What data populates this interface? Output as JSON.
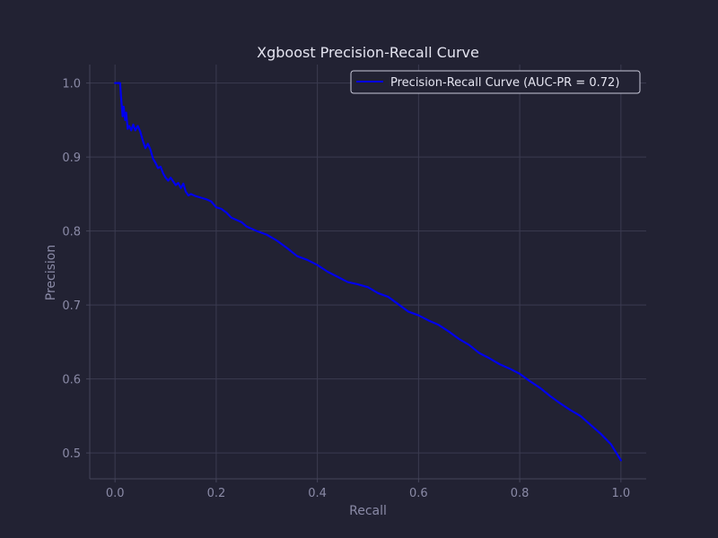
{
  "colors": {
    "background": "#222233",
    "axes_face": "#222233",
    "spine": "#44445a",
    "grid": "#3b3b50",
    "tick_label": "#8a8aa6",
    "axis_label": "#8a8aa6",
    "title": "#e4e4f0",
    "series": "#0000ee",
    "legend_text": "#e4e4f0",
    "legend_border": "#c8c8d8"
  },
  "chart_data": {
    "type": "line",
    "title": "Xgboost Precision-Recall Curve",
    "xlabel": "Recall",
    "ylabel": "Precision",
    "xlim": [
      -0.05,
      1.05
    ],
    "ylim": [
      0.465,
      1.025
    ],
    "xticks": [
      0.0,
      0.2,
      0.4,
      0.6,
      0.8,
      1.0
    ],
    "xtick_labels": [
      "0.0",
      "0.2",
      "0.4",
      "0.6",
      "0.8",
      "1.0"
    ],
    "yticks": [
      0.5,
      0.6,
      0.7,
      0.8,
      0.9,
      1.0
    ],
    "ytick_labels": [
      "0.5",
      "0.6",
      "0.7",
      "0.8",
      "0.9",
      "1.0"
    ],
    "grid": true,
    "legend_position": "top-right",
    "series": [
      {
        "name": "Precision-Recall Curve (AUC-PR = 0.72)",
        "x": [
          0.0,
          0.01,
          0.012,
          0.015,
          0.017,
          0.02,
          0.022,
          0.025,
          0.028,
          0.032,
          0.036,
          0.04,
          0.045,
          0.05,
          0.055,
          0.06,
          0.065,
          0.07,
          0.075,
          0.08,
          0.085,
          0.09,
          0.095,
          0.1,
          0.105,
          0.11,
          0.12,
          0.125,
          0.13,
          0.135,
          0.14,
          0.145,
          0.15,
          0.16,
          0.17,
          0.18,
          0.19,
          0.2,
          0.21,
          0.22,
          0.23,
          0.24,
          0.25,
          0.26,
          0.27,
          0.28,
          0.3,
          0.32,
          0.34,
          0.36,
          0.38,
          0.4,
          0.42,
          0.44,
          0.46,
          0.48,
          0.5,
          0.52,
          0.54,
          0.56,
          0.58,
          0.6,
          0.62,
          0.64,
          0.66,
          0.68,
          0.7,
          0.72,
          0.74,
          0.76,
          0.78,
          0.8,
          0.82,
          0.84,
          0.86,
          0.88,
          0.9,
          0.92,
          0.94,
          0.96,
          0.98,
          1.0
        ],
        "y": [
          1.0,
          1.0,
          0.98,
          0.955,
          0.968,
          0.95,
          0.96,
          0.938,
          0.942,
          0.936,
          0.944,
          0.936,
          0.942,
          0.934,
          0.922,
          0.912,
          0.918,
          0.91,
          0.898,
          0.892,
          0.885,
          0.887,
          0.878,
          0.872,
          0.868,
          0.872,
          0.862,
          0.865,
          0.858,
          0.864,
          0.853,
          0.848,
          0.85,
          0.847,
          0.845,
          0.843,
          0.84,
          0.832,
          0.83,
          0.825,
          0.818,
          0.815,
          0.812,
          0.806,
          0.803,
          0.8,
          0.795,
          0.787,
          0.777,
          0.766,
          0.761,
          0.754,
          0.745,
          0.738,
          0.731,
          0.728,
          0.724,
          0.716,
          0.711,
          0.701,
          0.691,
          0.686,
          0.679,
          0.673,
          0.664,
          0.654,
          0.646,
          0.635,
          0.628,
          0.62,
          0.614,
          0.607,
          0.597,
          0.588,
          0.577,
          0.567,
          0.558,
          0.55,
          0.538,
          0.526,
          0.512,
          0.49
        ]
      }
    ]
  }
}
